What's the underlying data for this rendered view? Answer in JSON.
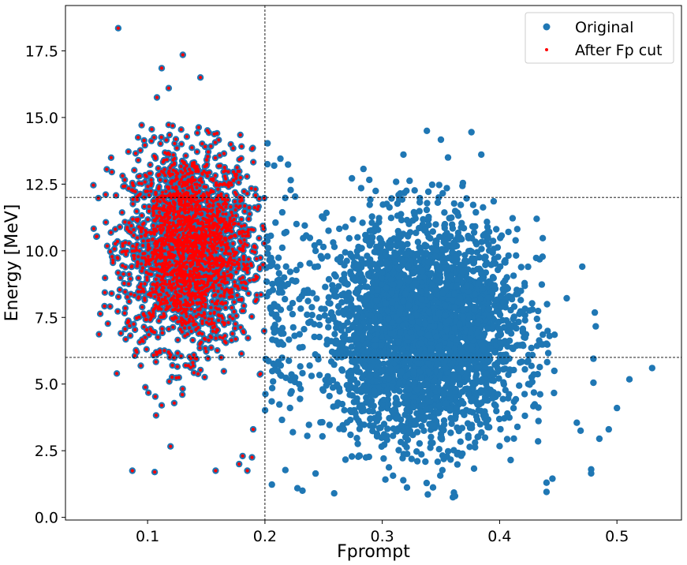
{
  "chart_data": {
    "type": "scatter",
    "xlabel": "Fprompt",
    "ylabel": "Energy [MeV]",
    "xlim": [
      0.03,
      0.555
    ],
    "ylim": [
      -0.1,
      19.2
    ],
    "xticks": [
      0.1,
      0.2,
      0.3,
      0.4,
      0.5
    ],
    "xtick_labels": [
      "0.1",
      "0.2",
      "0.3",
      "0.4",
      "0.5"
    ],
    "yticks": [
      0.0,
      2.5,
      5.0,
      7.5,
      10.0,
      12.5,
      15.0,
      17.5
    ],
    "ytick_labels": [
      "0.0",
      "2.5",
      "5.0",
      "7.5",
      "10.0",
      "12.5",
      "15.0",
      "17.5"
    ],
    "grid": false,
    "legend_position": "top-right",
    "reference_lines": {
      "vertical_x": [
        0.2
      ],
      "horizontal_y": [
        6.0,
        12.0
      ],
      "style": "dashed",
      "color": "#000000"
    },
    "colors": {
      "original": "#1f77b4",
      "after_cut": "#ff0000"
    },
    "series": [
      {
        "name": "Original",
        "color": "#1f77b4",
        "clusters": [
          {
            "x_mean": 0.135,
            "x_sd": 0.027,
            "y_mean": 10.1,
            "y_sd": 1.85,
            "x_range": [
              0.05,
              0.2
            ],
            "n": 2200
          },
          {
            "x_mean": 0.335,
            "x_sd": 0.041,
            "y_mean": 7.0,
            "y_sd": 2.0,
            "x_range": [
              0.2,
              0.53
            ],
            "n": 3300
          },
          {
            "x_mean": 0.21,
            "x_sd": 0.012,
            "y_mean": 7.8,
            "y_sd": 2.4,
            "x_range": [
              0.2,
              0.26
            ],
            "n": 120
          }
        ],
        "outliers": [
          [
            0.075,
            18.35
          ],
          [
            0.13,
            17.35
          ],
          [
            0.145,
            16.5
          ],
          [
            0.112,
            16.85
          ],
          [
            0.118,
            16.1
          ],
          [
            0.108,
            15.75
          ],
          [
            0.338,
            14.5
          ],
          [
            0.376,
            14.45
          ],
          [
            0.356,
            13.5
          ],
          [
            0.222,
            12.65
          ],
          [
            0.282,
            12.35
          ],
          [
            0.355,
            12.35
          ],
          [
            0.53,
            5.6
          ],
          [
            0.5,
            4.1
          ],
          [
            0.48,
            5.05
          ],
          [
            0.48,
            5.95
          ],
          [
            0.493,
            3.3
          ],
          [
            0.485,
            2.95
          ],
          [
            0.469,
            3.25
          ],
          [
            0.478,
            1.8
          ],
          [
            0.478,
            1.65
          ],
          [
            0.445,
            1.45
          ],
          [
            0.44,
            1.3
          ],
          [
            0.362,
            0.8
          ],
          [
            0.259,
            0.9
          ],
          [
            0.232,
            1.0
          ],
          [
            0.087,
            1.75
          ],
          [
            0.106,
            1.7
          ],
          [
            0.158,
            1.75
          ],
          [
            0.178,
            2.0
          ],
          [
            0.185,
            1.75
          ],
          [
            0.181,
            2.3
          ],
          [
            0.189,
            2.25
          ],
          [
            0.19,
            3.3
          ],
          [
            0.112,
            4.2
          ],
          [
            0.083,
            7.3
          ]
        ]
      },
      {
        "name": "After Fp cut",
        "color": "#ff0000",
        "selection": "Fprompt < 0.2"
      }
    ]
  }
}
